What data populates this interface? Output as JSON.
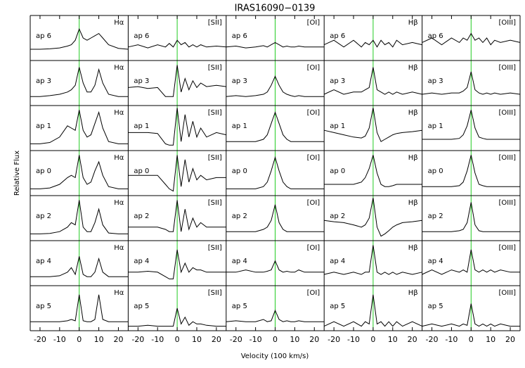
{
  "chart_data": {
    "type": "line",
    "title": "IRAS16090−0139",
    "xlabel": "Velocity (100 km/s)",
    "ylabel": "Relative Flux",
    "xlim": [
      -25,
      25
    ],
    "xticks": [
      -20,
      -10,
      0,
      10,
      20
    ],
    "ylim": [
      0,
      1
    ],
    "columns": [
      "Hα",
      "[SII]",
      "[OI]",
      "Hβ",
      "[OIII]"
    ],
    "rows": [
      "ap 6",
      "ap 3",
      "ap 1",
      "ap 0",
      "ap 2",
      "ap 4",
      "ap 5"
    ],
    "color": "#000000",
    "reference_line": {
      "x": 0,
      "color": "#22cc22"
    },
    "x": [
      -25,
      -20,
      -15,
      -10,
      -6,
      -4,
      -2,
      0,
      2,
      4,
      6,
      8,
      10,
      12,
      15,
      20,
      25
    ],
    "panels": [
      [
        [
          0.25,
          0.25,
          0.26,
          0.28,
          0.32,
          0.35,
          0.45,
          0.7,
          0.5,
          0.45,
          0.5,
          0.55,
          0.6,
          0.5,
          0.35,
          0.27,
          0.25
        ],
        [
          0.3,
          0.35,
          0.28,
          0.35,
          0.3,
          0.38,
          0.3,
          0.45,
          0.35,
          0.4,
          0.3,
          0.35,
          0.3,
          0.35,
          0.3,
          0.32,
          0.3
        ],
        [
          0.3,
          0.32,
          0.28,
          0.3,
          0.33,
          0.3,
          0.35,
          0.4,
          0.35,
          0.3,
          0.32,
          0.3,
          0.3,
          0.32,
          0.3,
          0.3,
          0.3
        ],
        [
          0.35,
          0.45,
          0.3,
          0.45,
          0.3,
          0.4,
          0.35,
          0.45,
          0.3,
          0.45,
          0.35,
          0.4,
          0.3,
          0.45,
          0.35,
          0.4,
          0.35
        ],
        [
          0.4,
          0.5,
          0.35,
          0.5,
          0.4,
          0.5,
          0.45,
          0.6,
          0.45,
          0.5,
          0.4,
          0.5,
          0.35,
          0.45,
          0.4,
          0.45,
          0.4
        ]
      ],
      [
        [
          0.2,
          0.2,
          0.22,
          0.25,
          0.3,
          0.35,
          0.45,
          0.85,
          0.5,
          0.3,
          0.3,
          0.45,
          0.8,
          0.5,
          0.25,
          0.2,
          0.2
        ],
        [
          0.4,
          0.42,
          0.38,
          0.4,
          0.2,
          0.2,
          0.2,
          0.9,
          0.3,
          0.6,
          0.35,
          0.55,
          0.4,
          0.5,
          0.42,
          0.45,
          0.42
        ],
        [
          0.2,
          0.22,
          0.2,
          0.22,
          0.25,
          0.3,
          0.45,
          0.65,
          0.45,
          0.3,
          0.25,
          0.22,
          0.2,
          0.22,
          0.2,
          0.2,
          0.2
        ],
        [
          0.25,
          0.35,
          0.25,
          0.3,
          0.3,
          0.35,
          0.4,
          0.85,
          0.35,
          0.3,
          0.25,
          0.3,
          0.25,
          0.3,
          0.25,
          0.3,
          0.25
        ],
        [
          0.25,
          0.28,
          0.25,
          0.28,
          0.28,
          0.32,
          0.4,
          0.75,
          0.35,
          0.28,
          0.25,
          0.28,
          0.25,
          0.28,
          0.25,
          0.28,
          0.25
        ]
      ],
      [
        [
          0.15,
          0.15,
          0.18,
          0.3,
          0.55,
          0.5,
          0.45,
          0.9,
          0.45,
          0.3,
          0.35,
          0.6,
          0.85,
          0.5,
          0.2,
          0.15,
          0.15
        ],
        [
          0.4,
          0.4,
          0.4,
          0.38,
          0.15,
          0.12,
          0.12,
          0.95,
          0.2,
          0.8,
          0.3,
          0.65,
          0.3,
          0.5,
          0.3,
          0.4,
          0.35
        ],
        [
          0.2,
          0.2,
          0.2,
          0.2,
          0.25,
          0.35,
          0.6,
          0.85,
          0.6,
          0.35,
          0.25,
          0.2,
          0.2,
          0.2,
          0.2,
          0.2,
          0.2
        ],
        [
          0.45,
          0.4,
          0.35,
          0.3,
          0.28,
          0.32,
          0.5,
          0.95,
          0.4,
          0.2,
          0.25,
          0.3,
          0.35,
          0.38,
          0.4,
          0.42,
          0.45
        ],
        [
          0.25,
          0.25,
          0.25,
          0.25,
          0.27,
          0.35,
          0.55,
          0.9,
          0.5,
          0.3,
          0.27,
          0.25,
          0.25,
          0.25,
          0.25,
          0.25,
          0.25
        ]
      ],
      [
        [
          0.15,
          0.15,
          0.17,
          0.25,
          0.4,
          0.45,
          0.4,
          0.9,
          0.4,
          0.25,
          0.3,
          0.55,
          0.75,
          0.45,
          0.2,
          0.15,
          0.15
        ],
        [
          0.45,
          0.45,
          0.45,
          0.45,
          0.25,
          0.15,
          0.1,
          0.9,
          0.2,
          0.8,
          0.3,
          0.6,
          0.35,
          0.45,
          0.35,
          0.4,
          0.4
        ],
        [
          0.15,
          0.15,
          0.15,
          0.15,
          0.2,
          0.3,
          0.55,
          0.85,
          0.55,
          0.3,
          0.2,
          0.15,
          0.15,
          0.15,
          0.15,
          0.15,
          0.15
        ],
        [
          0.25,
          0.25,
          0.25,
          0.25,
          0.3,
          0.4,
          0.6,
          0.9,
          0.5,
          0.25,
          0.2,
          0.2,
          0.22,
          0.25,
          0.25,
          0.25,
          0.25
        ],
        [
          0.2,
          0.2,
          0.2,
          0.2,
          0.22,
          0.3,
          0.55,
          0.9,
          0.5,
          0.25,
          0.22,
          0.2,
          0.2,
          0.2,
          0.2,
          0.2,
          0.2
        ]
      ],
      [
        [
          0.15,
          0.15,
          0.16,
          0.2,
          0.3,
          0.4,
          0.35,
          0.9,
          0.3,
          0.2,
          0.2,
          0.4,
          0.7,
          0.35,
          0.17,
          0.15,
          0.15
        ],
        [
          0.3,
          0.3,
          0.3,
          0.3,
          0.25,
          0.2,
          0.2,
          0.9,
          0.2,
          0.7,
          0.25,
          0.5,
          0.3,
          0.4,
          0.3,
          0.3,
          0.3
        ],
        [
          0.2,
          0.2,
          0.2,
          0.2,
          0.25,
          0.3,
          0.45,
          0.8,
          0.4,
          0.25,
          0.2,
          0.2,
          0.2,
          0.2,
          0.2,
          0.2,
          0.2
        ],
        [
          0.45,
          0.42,
          0.4,
          0.35,
          0.3,
          0.35,
          0.5,
          0.95,
          0.3,
          0.1,
          0.15,
          0.22,
          0.3,
          0.35,
          0.4,
          0.42,
          0.45
        ],
        [
          0.2,
          0.2,
          0.2,
          0.2,
          0.22,
          0.25,
          0.4,
          0.85,
          0.35,
          0.22,
          0.2,
          0.2,
          0.2,
          0.2,
          0.2,
          0.2,
          0.2
        ]
      ],
      [
        [
          0.2,
          0.2,
          0.2,
          0.22,
          0.3,
          0.4,
          0.25,
          0.65,
          0.25,
          0.2,
          0.2,
          0.3,
          0.6,
          0.3,
          0.2,
          0.2,
          0.2
        ],
        [
          0.3,
          0.3,
          0.32,
          0.3,
          0.2,
          0.15,
          0.15,
          0.8,
          0.3,
          0.5,
          0.3,
          0.4,
          0.35,
          0.35,
          0.3,
          0.3,
          0.3
        ],
        [
          0.3,
          0.3,
          0.35,
          0.3,
          0.3,
          0.32,
          0.35,
          0.55,
          0.35,
          0.3,
          0.32,
          0.3,
          0.3,
          0.35,
          0.3,
          0.3,
          0.3
        ],
        [
          0.25,
          0.3,
          0.25,
          0.3,
          0.25,
          0.3,
          0.3,
          0.9,
          0.3,
          0.25,
          0.3,
          0.25,
          0.3,
          0.25,
          0.3,
          0.25,
          0.3
        ],
        [
          0.25,
          0.35,
          0.25,
          0.35,
          0.3,
          0.35,
          0.3,
          0.8,
          0.35,
          0.3,
          0.35,
          0.3,
          0.35,
          0.3,
          0.35,
          0.3,
          0.3
        ]
      ],
      [
        [
          0.2,
          0.2,
          0.2,
          0.2,
          0.22,
          0.25,
          0.22,
          0.8,
          0.22,
          0.2,
          0.2,
          0.25,
          0.8,
          0.25,
          0.2,
          0.2,
          0.2
        ],
        [
          0.1,
          0.1,
          0.12,
          0.1,
          0.1,
          0.1,
          0.1,
          0.5,
          0.15,
          0.3,
          0.12,
          0.2,
          0.15,
          0.15,
          0.12,
          0.1,
          0.1
        ],
        [
          0.2,
          0.22,
          0.2,
          0.2,
          0.25,
          0.2,
          0.22,
          0.45,
          0.25,
          0.2,
          0.22,
          0.2,
          0.2,
          0.22,
          0.2,
          0.2,
          0.2
        ],
        [
          0.1,
          0.2,
          0.1,
          0.2,
          0.1,
          0.2,
          0.15,
          0.8,
          0.15,
          0.2,
          0.1,
          0.2,
          0.1,
          0.2,
          0.1,
          0.2,
          0.1
        ],
        [
          0.1,
          0.15,
          0.1,
          0.15,
          0.1,
          0.15,
          0.12,
          0.6,
          0.15,
          0.1,
          0.15,
          0.1,
          0.15,
          0.1,
          0.15,
          0.1,
          0.1
        ]
      ]
    ]
  }
}
